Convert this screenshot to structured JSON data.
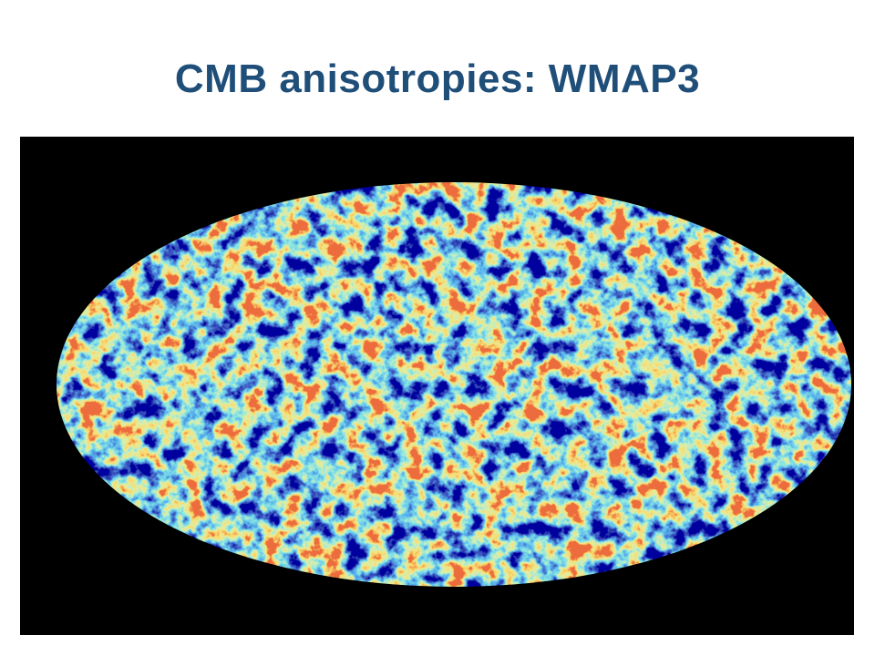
{
  "title": "CMB anisotropies: WMAP3"
}
